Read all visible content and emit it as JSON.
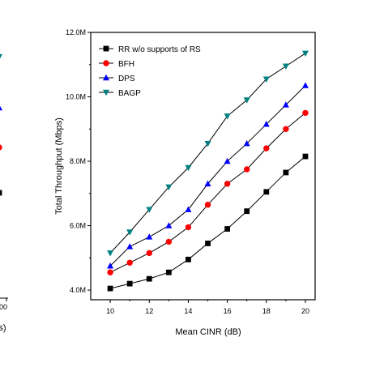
{
  "left_panel_fragment": {
    "tick_label": "00",
    "axis_label_fragment": "s)"
  },
  "chart_data": {
    "type": "line",
    "title": "",
    "xlabel": "Mean CINR (dB)",
    "ylabel": "Total Throughput (Mbps)",
    "x": [
      10,
      11,
      12,
      13,
      14,
      15,
      16,
      17,
      18,
      19,
      20
    ],
    "xlim": [
      9,
      20.5
    ],
    "ylim": [
      3.7,
      12.0
    ],
    "xticks": [
      10,
      12,
      14,
      16,
      18,
      20
    ],
    "xtick_labels": [
      "10",
      "12",
      "14",
      "16",
      "18",
      "20"
    ],
    "yticks": [
      4,
      6,
      8,
      10,
      12
    ],
    "ytick_labels": [
      "4.0M",
      "6.0M",
      "8.0M",
      "10.0M",
      "12.0M"
    ],
    "grid": false,
    "legend_position": "top-left",
    "series": [
      {
        "name": "RR w/o supports of RS",
        "marker": "square",
        "color": "#000000",
        "values": [
          4.05,
          4.2,
          4.35,
          4.55,
          4.95,
          5.45,
          5.9,
          6.45,
          7.05,
          7.65,
          8.15
        ]
      },
      {
        "name": "BFH",
        "marker": "circle",
        "color": "#ff0000",
        "values": [
          4.55,
          4.85,
          5.15,
          5.5,
          5.95,
          6.65,
          7.3,
          7.75,
          8.4,
          9.0,
          9.5
        ]
      },
      {
        "name": "DPS",
        "marker": "triangle-up",
        "color": "#0000ff",
        "values": [
          4.75,
          5.35,
          5.65,
          6.0,
          6.5,
          7.3,
          8.0,
          8.55,
          9.15,
          9.75,
          10.35
        ]
      },
      {
        "name": "BAGP",
        "marker": "triangle-down",
        "color": "#008080",
        "values": [
          5.15,
          5.8,
          6.5,
          7.2,
          7.8,
          8.55,
          9.4,
          9.9,
          10.55,
          10.95,
          11.35
        ]
      }
    ],
    "left_panel_markers": [
      {
        "series": "BAGP",
        "marker": "triangle-down",
        "color": "#008080"
      },
      {
        "series": "DPS",
        "marker": "triangle-up",
        "color": "#0000ff"
      },
      {
        "series": "BFH",
        "marker": "circle",
        "color": "#ff0000"
      },
      {
        "series": "RR w/o supports of RS",
        "marker": "square",
        "color": "#000000"
      }
    ]
  }
}
